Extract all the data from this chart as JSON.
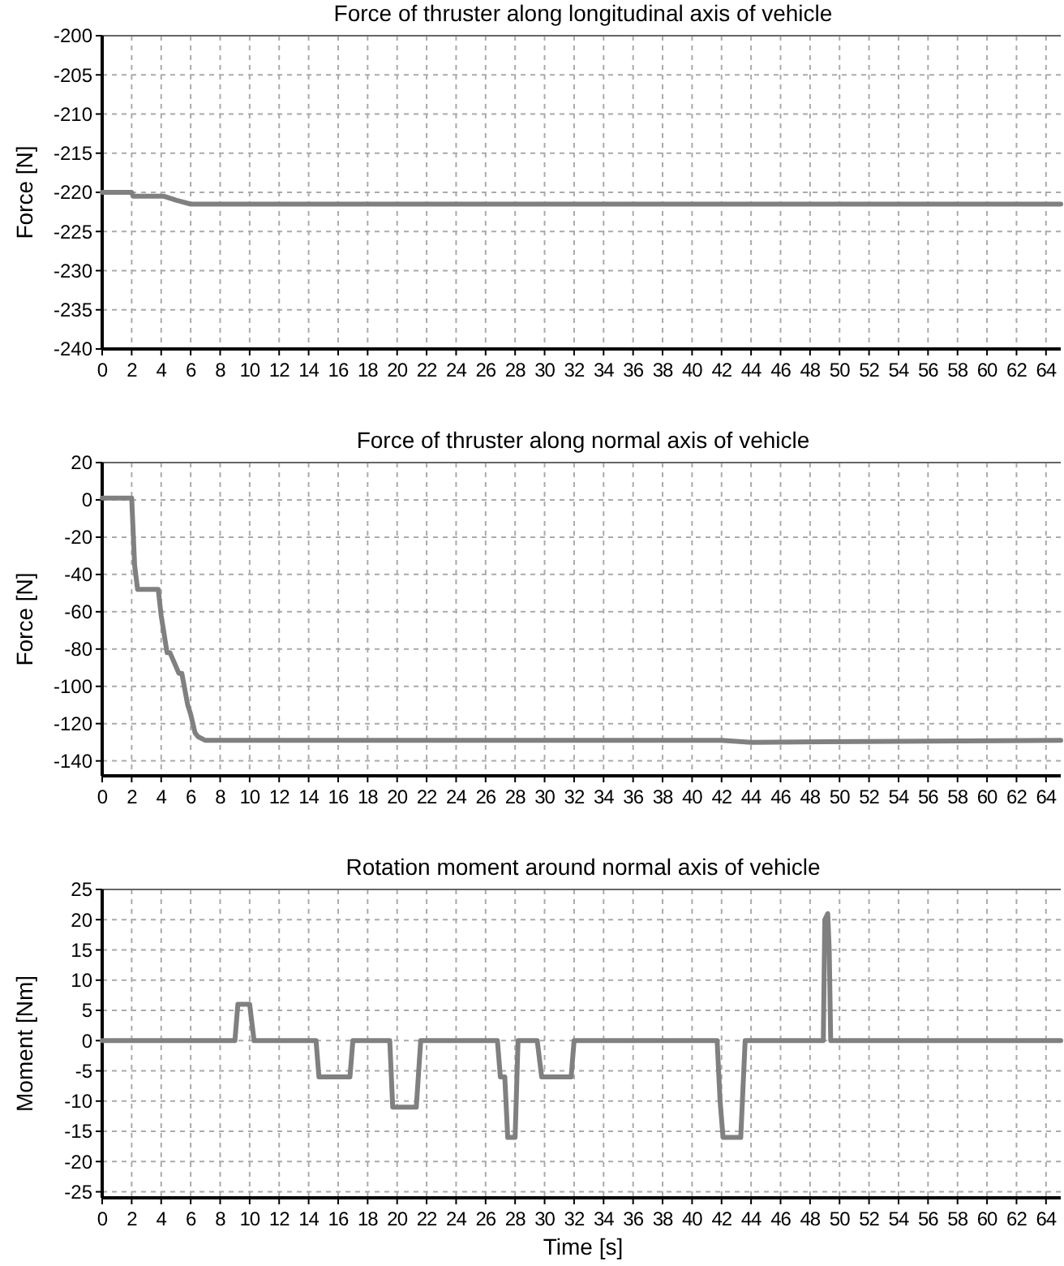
{
  "chart_data": [
    {
      "type": "line",
      "title": "Force of thruster along longitudinal axis of vehicle",
      "ylabel": "Force [N]",
      "xlim": [
        0,
        65
      ],
      "xticks": [
        0,
        2,
        4,
        6,
        8,
        10,
        12,
        14,
        16,
        18,
        20,
        22,
        24,
        26,
        28,
        30,
        32,
        34,
        36,
        38,
        40,
        42,
        44,
        46,
        48,
        50,
        52,
        54,
        56,
        58,
        60,
        62,
        64
      ],
      "ylim": [
        -240,
        -200
      ],
      "yticks": [
        -240,
        -235,
        -230,
        -225,
        -220,
        -215,
        -210,
        -205,
        -200
      ],
      "grid": true,
      "marker": "none",
      "line_style": "solid",
      "series": [
        {
          "color": "#808080",
          "x": [
            0,
            2,
            2.1,
            4.2,
            5,
            6,
            65
          ],
          "values": [
            -220,
            -220,
            -220.5,
            -220.5,
            -221,
            -221.5,
            -221.5
          ]
        }
      ]
    },
    {
      "type": "line",
      "title": "Force of thruster along normal axis of vehicle",
      "ylabel": "Force [N]",
      "xlim": [
        0,
        65
      ],
      "xticks": [
        0,
        2,
        4,
        6,
        8,
        10,
        12,
        14,
        16,
        18,
        20,
        22,
        24,
        26,
        28,
        30,
        32,
        34,
        36,
        38,
        40,
        42,
        44,
        46,
        48,
        50,
        52,
        54,
        56,
        58,
        60,
        62,
        64
      ],
      "ylim": [
        -148,
        20
      ],
      "yticks": [
        -140,
        -120,
        -100,
        -80,
        -60,
        -40,
        -20,
        0,
        20
      ],
      "grid": true,
      "marker": "none",
      "line_style": "solid",
      "series": [
        {
          "color": "#808080",
          "x": [
            0,
            2,
            2.2,
            2.4,
            3.8,
            4,
            4.4,
            4.6,
            5.2,
            5.4,
            5.8,
            6,
            6.3,
            6.5,
            7,
            28,
            42,
            44,
            65
          ],
          "values": [
            1,
            1,
            -35,
            -48,
            -48,
            -62,
            -82,
            -82,
            -93,
            -93,
            -110,
            -115,
            -125,
            -127,
            -129,
            -129,
            -129,
            -130,
            -129
          ]
        }
      ]
    },
    {
      "type": "line",
      "title": "Rotation moment around normal axis of vehicle",
      "xlabel": "Time [s]",
      "ylabel": "Moment [Nm]",
      "xlim": [
        0,
        65
      ],
      "xticks": [
        0,
        2,
        4,
        6,
        8,
        10,
        12,
        14,
        16,
        18,
        20,
        22,
        24,
        26,
        28,
        30,
        32,
        34,
        36,
        38,
        40,
        42,
        44,
        46,
        48,
        50,
        52,
        54,
        56,
        58,
        60,
        62,
        64
      ],
      "ylim": [
        -26,
        25
      ],
      "yticks": [
        -25,
        -20,
        -15,
        -10,
        -5,
        0,
        5,
        10,
        15,
        20,
        25
      ],
      "grid": true,
      "marker": "none",
      "line_style": "solid",
      "series": [
        {
          "color": "#808080",
          "x": [
            0,
            9,
            9.2,
            10,
            10.3,
            14.5,
            14.7,
            16.8,
            17,
            19.5,
            19.7,
            21.3,
            21.6,
            26.8,
            27,
            27.3,
            27.5,
            28,
            28.2,
            29.5,
            29.8,
            31.8,
            32,
            41.7,
            41.9,
            42.1,
            43.3,
            43.6,
            48.9,
            49,
            49.2,
            49.3,
            49.4,
            65
          ],
          "values": [
            0,
            0,
            6,
            6,
            0,
            0,
            -6,
            -6,
            0,
            0,
            -11,
            -11,
            0,
            0,
            -6,
            -6,
            -16,
            -16,
            0,
            0,
            -6,
            -6,
            0,
            0,
            -10,
            -16,
            -16,
            0,
            0,
            20,
            21,
            15,
            0,
            0
          ]
        }
      ]
    }
  ]
}
